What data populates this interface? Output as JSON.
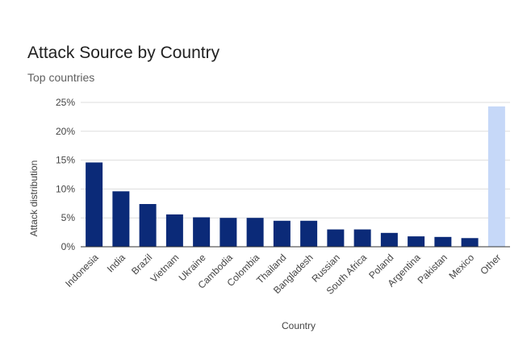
{
  "chart_data": {
    "type": "bar",
    "title": "Attack Source by Country",
    "subtitle": "Top countries",
    "xlabel": "Country",
    "ylabel": "Attack distribution",
    "ylim": [
      0,
      25
    ],
    "y_ticks": [
      "0%",
      "5%",
      "10%",
      "15%",
      "20%",
      "25%"
    ],
    "y_tick_values": [
      0,
      5,
      10,
      15,
      20,
      25
    ],
    "grid": true,
    "legend": "none",
    "categories": [
      "Indonesia",
      "India",
      "Brazil",
      "Vietnam",
      "Ukraine",
      "Cambodia",
      "Colombia",
      "Thailand",
      "Bangladesh",
      "Russian",
      "South Africa",
      "Poland",
      "Argentina",
      "Pakistan",
      "Mexico",
      "Other"
    ],
    "values": [
      14.6,
      9.6,
      7.4,
      5.6,
      5.1,
      5.0,
      5.0,
      4.5,
      4.5,
      3.0,
      3.0,
      2.4,
      1.8,
      1.7,
      1.5,
      24.3
    ],
    "colors": {
      "primary": "#0b2a78",
      "highlight": "#c6d8f8",
      "grid": "#dddddd",
      "axis": "#333333"
    },
    "highlight_categories": [
      "Other"
    ]
  }
}
